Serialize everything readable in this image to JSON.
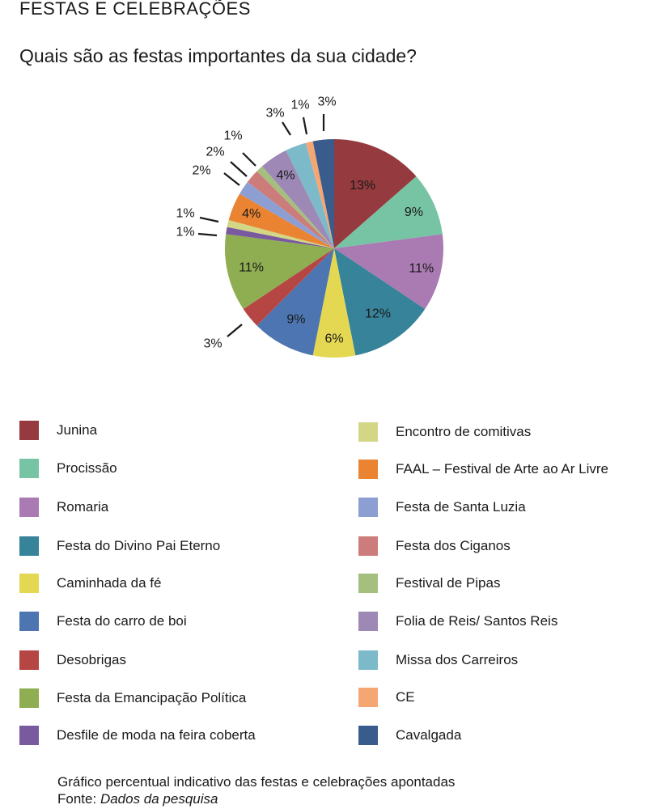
{
  "header": {
    "section_title": "FESTAS E CELEBRAÇÕES"
  },
  "question": "Quais são as festas importantes da sua cidade?",
  "chart_data": {
    "type": "pie",
    "title": "Quais são as festas importantes da sua cidade?",
    "slices": [
      {
        "label": "Junina",
        "value": 13,
        "display": "13%",
        "color": "#953a3e"
      },
      {
        "label": "Procissão",
        "value": 9,
        "display": "9%",
        "color": "#77c4a5"
      },
      {
        "label": "Romaria",
        "value": 11,
        "display": "11%",
        "color": "#a97bb2"
      },
      {
        "label": "Festa do Divino Pai Eterno",
        "value": 12,
        "display": "12%",
        "color": "#36839a"
      },
      {
        "label": "Caminhada da fé",
        "value": 6,
        "display": "6%",
        "color": "#e4d853"
      },
      {
        "label": "Festa do carro de boi",
        "value": 9,
        "display": "9%",
        "color": "#4d75b1"
      },
      {
        "label": "Desobrigas",
        "value": 3,
        "display": "3%",
        "color": "#b64643"
      },
      {
        "label": "Festa da Emancipação Política",
        "value": 11,
        "display": "11%",
        "color": "#8fad51"
      },
      {
        "label": "Desfile de moda na feira coberta",
        "value": 1,
        "display": "1%",
        "color": "#7a5a9f"
      },
      {
        "label": "Encontro de comitivas",
        "value": 1,
        "display": "1%",
        "color": "#d3d785"
      },
      {
        "label": "FAAL – Festival de Arte ao Ar Livre",
        "value": 4,
        "display": "4%",
        "color": "#ea8433"
      },
      {
        "label": "Festa de Santa Luzia",
        "value": 2,
        "display": "2%",
        "color": "#8d9fd2"
      },
      {
        "label": "Festa dos Ciganos",
        "value": 2,
        "display": "2%",
        "color": "#cc7c7b"
      },
      {
        "label": "Festival de Pipas",
        "value": 1,
        "display": "1%",
        "color": "#a5bf7f"
      },
      {
        "label": "Folia de Reis/ Santos Reis",
        "value": 4,
        "display": "4%",
        "color": "#9d88b6"
      },
      {
        "label": "Missa dos Carreiros",
        "value": 3,
        "display": "3%",
        "color": "#7cbac9"
      },
      {
        "label": "CE",
        "value": 1,
        "display": "1%",
        "color": "#f6a673"
      },
      {
        "label": "Cavalgada",
        "value": 3,
        "display": "3%",
        "color": "#3a5c8d"
      }
    ]
  },
  "footer": {
    "caption": "Gráfico percentual indicativo das festas e celebrações apontadas",
    "source_label": "Fonte:",
    "source_value": "Dados da pesquisa"
  }
}
